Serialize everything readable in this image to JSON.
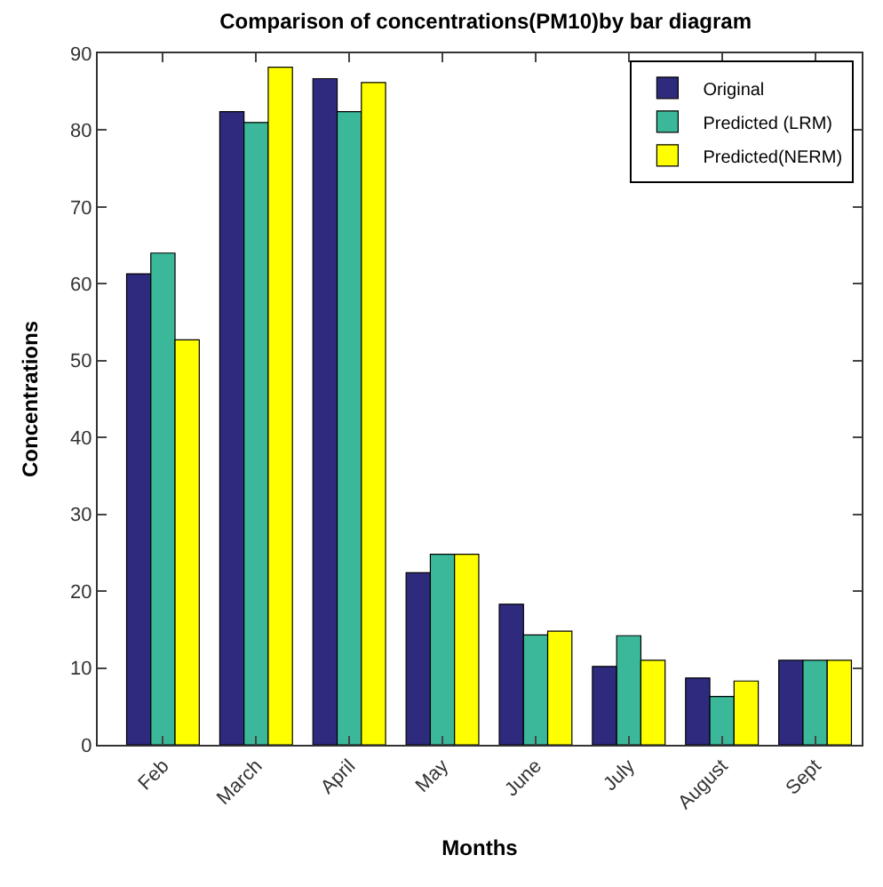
{
  "chart_data": {
    "type": "bar",
    "title": "Comparison of concentrations(PM10)by bar diagram",
    "xlabel": "Months",
    "ylabel": "Concentrations",
    "categories": [
      "Feb",
      "March",
      "April",
      "May",
      "June",
      "July",
      "August",
      "Sept"
    ],
    "series": [
      {
        "name": "Original",
        "color": "#2e2a7e",
        "values": [
          61.3,
          82.4,
          86.7,
          22.4,
          18.3,
          10.2,
          8.7,
          11
        ]
      },
      {
        "name": "Predicted (LRM)",
        "color": "#3bb89a",
        "values": [
          64,
          81,
          82.4,
          24.8,
          14.3,
          14.2,
          6.3,
          11
        ]
      },
      {
        "name": "Predicted(NERM)",
        "color": "#ffff00",
        "values": [
          52.7,
          88.2,
          86.2,
          24.8,
          14.8,
          11,
          8.3,
          11
        ]
      }
    ],
    "ylim": [
      0,
      90
    ],
    "yticks": [
      0,
      10,
      20,
      30,
      40,
      50,
      60,
      70,
      80,
      90
    ],
    "legend": "top right"
  }
}
